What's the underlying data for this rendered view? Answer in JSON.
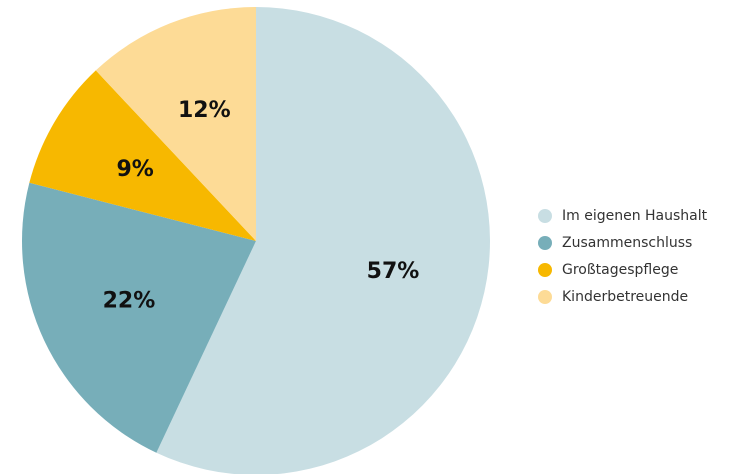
{
  "chart_data": {
    "type": "pie",
    "title": "",
    "categories": [
      "Im eigenen Haushalt",
      "Zusammenschluss",
      "Großtagespflege",
      "Kinderbetreuende"
    ],
    "values": [
      57,
      22,
      9,
      12
    ],
    "labels": [
      "57%",
      "22%",
      "9%",
      "12%"
    ],
    "colors": [
      "#c8dee3",
      "#77aeb9",
      "#f7b800",
      "#fddb96"
    ],
    "start": "top",
    "direction": "clockwise",
    "legend_position": "right"
  },
  "legend": {
    "items": [
      {
        "label": "Im eigenen Haushalt",
        "color": "#c8dee3"
      },
      {
        "label": "Zusammenschluss",
        "color": "#77aeb9"
      },
      {
        "label": "Großtagespflege",
        "color": "#f7b800"
      },
      {
        "label": "Kinderbetreuende",
        "color": "#fddb96"
      }
    ]
  }
}
